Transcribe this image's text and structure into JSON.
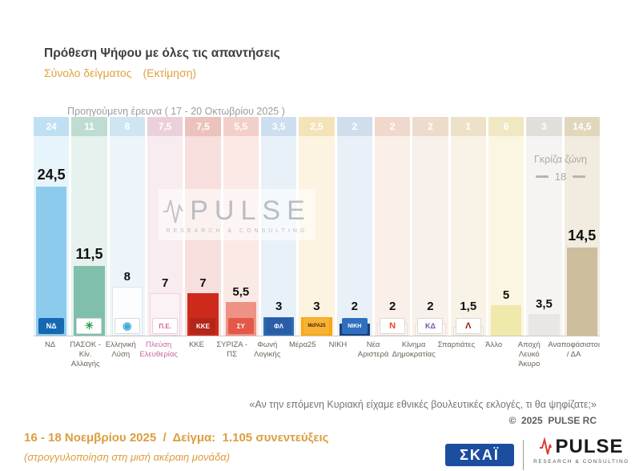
{
  "header": {
    "title": "Πρόθεση Ψήφου με όλες τις απαντήσεις",
    "subtitle": "Σύνολο δείγματος",
    "subtitle_note": "(Εκτίμηση)"
  },
  "chart_data": {
    "type": "bar",
    "title": "Πρόθεση Ψήφου με όλες τις απαντήσεις",
    "subtitle": "Σύνολο δείγματος (Εκτίμηση)",
    "prev_survey_header": "Προηγούμενη έρευνα ( 17 - 20 Οκτωβρίου 2025 )",
    "grey_zone": {
      "label": "Γκρίζα ζώνη",
      "value": "18"
    },
    "watermark": {
      "text": "PULSE",
      "subtext": "RESEARCH & CONSULTING"
    },
    "ylim": [
      0,
      26
    ],
    "categories": [
      "ΝΔ",
      "ΠΑΣΟΚ - Κίν. Αλλαγής",
      "Ελληνική Λύση",
      "Πλεύση Ελευθερίας",
      "ΚΚΕ",
      "ΣΥΡΙΖΑ - ΠΣ",
      "Φωνή Λογικής",
      "Μέρα25",
      "ΝΙΚΗ",
      "Νέα Αριστερά",
      "Κίνημα Δημοκρατίας",
      "Σπαρτιάτες",
      "Άλλο",
      "Αποχή Λευκό Άκυρο",
      "Αναποφάσιστοι / ΔΑ"
    ],
    "series": [
      {
        "name": "Προηγούμενη έρευνα ( 17 - 20 Οκτωβρίου 2025 )",
        "values": [
          24,
          11,
          8,
          7.5,
          7.5,
          5.5,
          3.5,
          2.5,
          2,
          2,
          2,
          1,
          6,
          3,
          14.5
        ],
        "labels": [
          "24",
          "11",
          "8",
          "7,5",
          "7,5",
          "5,5",
          "3,5",
          "2,5",
          "2",
          "2",
          "2",
          "1",
          "6",
          "3",
          "14,5"
        ]
      },
      {
        "name": "Πρόθεση ψήφου ( 16 - 18 Νοεμβρίου 2025 )",
        "values": [
          24.5,
          11.5,
          8,
          7,
          7,
          5.5,
          3,
          3,
          2,
          2,
          2,
          1.5,
          5,
          3.5,
          14.5
        ],
        "labels": [
          "24,5",
          "11,5",
          "8",
          "7",
          "7",
          "5,5",
          "3",
          "3",
          "2",
          "2",
          "2",
          "1,5",
          "5",
          "3,5",
          "14,5"
        ]
      }
    ],
    "parties": [
      {
        "name": "ΝΔ",
        "value": 24.5,
        "label": "24,5",
        "prev": 24,
        "prev_label": "24",
        "bar": "#8CCBEC",
        "tint": "#E8F4FB",
        "band": "#BFDFF2",
        "logo": {
          "bg": "#1668B2",
          "color": "#FFFFFF",
          "text": "ΝΔ",
          "size": 9
        }
      },
      {
        "name": "ΠΑΣΟΚ - Κίν. Αλλαγής",
        "value": 11.5,
        "label": "11,5",
        "prev": 11,
        "prev_label": "11",
        "bar": "#7FBFAB",
        "tint": "#E7F2EE",
        "band": "#BFDCD3",
        "logo": {
          "bg": "#FFFFFF",
          "color": "#2FA14D",
          "text": "☀",
          "size": 13,
          "border": "#D8D8D8"
        }
      },
      {
        "name": "Ελληνική Λύση",
        "value": 8,
        "label": "8",
        "prev": 8,
        "prev_label": "8",
        "bar": "#FBFDFE",
        "bar_border": "#D9E7EF",
        "tint": "#EDF5FA",
        "band": "#CFE5F1",
        "logo": {
          "bg": "#FFFFFF",
          "color": "#3FA9DC",
          "text": "◉",
          "size": 13,
          "border": "#D8D8D8"
        }
      },
      {
        "name": "Πλεύση Ελευθερίας",
        "value": 7,
        "label": "7",
        "prev": 7.5,
        "prev_label": "7,5",
        "bar": "#FBF2F5",
        "bar_border": "#EDD5DE",
        "tint": "#F8ECF0",
        "band": "#EBD0DB",
        "label_color": "#C7669E",
        "logo": {
          "bg": "#FFFFFF",
          "color": "#E05C9A",
          "text": "Π.Ε.",
          "size": 8,
          "border": "#E8CDD8"
        }
      },
      {
        "name": "ΚΚΕ",
        "value": 7,
        "label": "7",
        "prev": 7.5,
        "prev_label": "7,5",
        "bar": "#CE2A1B",
        "tint": "#F6DFDC",
        "band": "#ECC2BC",
        "logo": {
          "bg": "#B3261A",
          "color": "#FFFFFF",
          "text": "ΚΚΕ",
          "size": 8
        }
      },
      {
        "name": "ΣΥΡΙΖΑ - ΠΣ",
        "value": 5.5,
        "label": "5,5",
        "prev": 5.5,
        "prev_label": "5,5",
        "bar": "#EE9286",
        "tint": "#FBE9E6",
        "band": "#F3CFC9",
        "logo": {
          "bg": "#E4584A",
          "color": "#FFFFFF",
          "text": "ΣΥ",
          "size": 8
        }
      },
      {
        "name": "Φωνή Λογικής",
        "value": 3,
        "label": "3",
        "prev": 3.5,
        "prev_label": "3,5",
        "bar": "#2E6CB2",
        "tint": "#E9F1F8",
        "band": "#CCDEEF",
        "logo": {
          "bg": "#2A5CA8",
          "color": "#FFFFFF",
          "text": "ΦΛ",
          "size": 8
        }
      },
      {
        "name": "Μέρα25",
        "value": 3,
        "label": "3",
        "prev": 2.5,
        "prev_label": "2,5",
        "bar": "#F7A815",
        "tint": "#FCF3E0",
        "band": "#F4E2B8",
        "logo": {
          "bg": "#F9B234",
          "color": "#4A2B12",
          "text": "ΜέΡΑ25",
          "size": 6
        }
      },
      {
        "name": "ΝΙΚΗ",
        "value": 2,
        "label": "2",
        "prev": 2,
        "prev_label": "2",
        "bar": "#16427F",
        "tint": "#EAF0F7",
        "band": "#D0DDEC",
        "logo": {
          "bg": "#2F6FBE",
          "color": "#FFFFFF",
          "text": "ΝΙΚΗ",
          "size": 7
        }
      },
      {
        "name": "Νέα Αριστερά",
        "value": 2,
        "label": "2",
        "prev": 2,
        "prev_label": "2",
        "bar": "#FCF7F4",
        "bar_border": "#EFDDD2",
        "tint": "#FAEFE9",
        "band": "#F0D9CC",
        "logo": {
          "bg": "#FFFFFF",
          "color": "#E8432D",
          "text": "Ν",
          "size": 11,
          "border": "#D8D8D8"
        }
      },
      {
        "name": "Κίνημα Δημοκρατίας",
        "value": 2,
        "label": "2",
        "prev": 2,
        "prev_label": "2",
        "bar": "#FBF7F3",
        "bar_border": "#EDE0D4",
        "tint": "#F8F0EA",
        "band": "#EDDCCB",
        "logo": {
          "bg": "#FFFFFF",
          "color": "#7B4FA6",
          "text": "ΚΔ",
          "size": 9,
          "border": "#D8D8D8"
        }
      },
      {
        "name": "Σπαρτιάτες",
        "value": 1.5,
        "label": "1,5",
        "prev": 1,
        "prev_label": "1",
        "bar": "#FAF6EF",
        "bar_border": "#EAE0CE",
        "tint": "#F8F2E7",
        "band": "#EDE1C8",
        "logo": {
          "bg": "#FFFFFF",
          "color": "#8E1B12",
          "text": "Λ",
          "size": 11,
          "border": "#D8D8D8"
        }
      },
      {
        "name": "Άλλο",
        "value": 5,
        "label": "5",
        "prev": 6,
        "prev_label": "6",
        "bar": "#F1E8AC",
        "tint": "#FAF6E1",
        "band": "#F0E8C2"
      },
      {
        "name": "Αποχή Λευκό Άκυρο",
        "value": 3.5,
        "label": "3,5",
        "prev": 3,
        "prev_label": "3",
        "bar": "#E9E7E4",
        "tint": "#F5F4F2",
        "band": "#E2DFDB"
      },
      {
        "name": "Αναποφάσιστοι / ΔΑ",
        "value": 14.5,
        "label": "14,5",
        "prev": 14.5,
        "prev_label": "14,5",
        "bar": "#CDBF9D",
        "tint": "#F1ECDF",
        "band": "#E1D7BC"
      }
    ]
  },
  "quote": "«Αν την επόμενη Κυριακή είχαμε εθνικές βουλευτικές εκλογές, τι θα ψηφίζατε;»",
  "copyright": "©  2025  PULSE RC",
  "footer": {
    "line1": "16 - 18 Νοεμβρίου 2025  /  Δείγμα:  1.105 συνεντεύξεις",
    "line2": "(στρογγυλοποίηση στη μισή ακέραιη μονάδα)"
  },
  "logos": {
    "skai_text": "ΣΚΑΪ",
    "pulse_text": "PULSE",
    "pulse_subtext": "RESEARCH & CONSULTING"
  }
}
